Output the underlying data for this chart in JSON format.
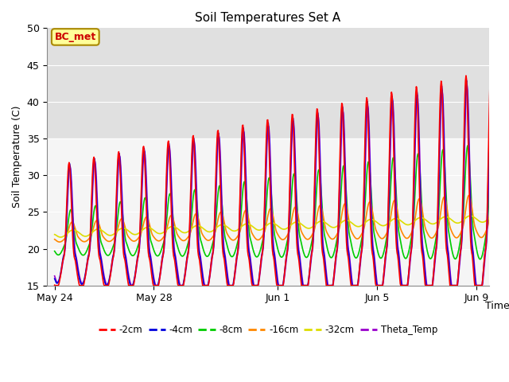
{
  "title": "Soil Temperatures Set A",
  "xlabel": "Time",
  "ylabel": "Soil Temperature (C)",
  "ylim": [
    15,
    50
  ],
  "colors": {
    "2cm": "#FF0000",
    "4cm": "#0000DD",
    "8cm": "#00CC00",
    "16cm": "#FF8800",
    "32cm": "#DDDD00",
    "Theta": "#9900CC"
  },
  "legend_labels": [
    "-2cm",
    "-4cm",
    "-8cm",
    "-16cm",
    "-32cm",
    "Theta_Temp"
  ],
  "annotation_text": "BC_met",
  "annotation_color": "#CC0000",
  "annotation_bg": "#FFFF99",
  "bg_upper_color": "#E0E0E0",
  "bg_lower_color": "#F5F5F5",
  "bg_split": 35,
  "x_ticks_labels": [
    "May 24",
    "May 28",
    "Jun 1",
    "Jun 5",
    "Jun 9"
  ],
  "x_ticks_pos": [
    0,
    4,
    9,
    13,
    17
  ]
}
